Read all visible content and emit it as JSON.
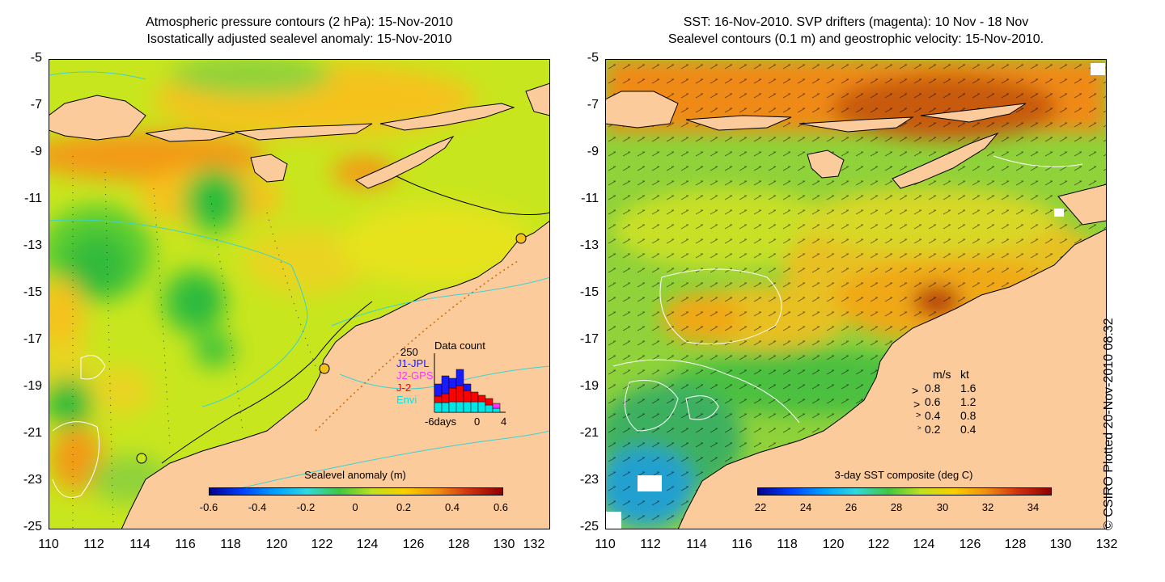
{
  "left_panel": {
    "title_line1": "Atmospheric pressure contours (2 hPa): 15-Nov-2010",
    "title_line2": "Isostatically adjusted sealevel anomaly: 15-Nov-2010",
    "colorbar": {
      "label": "Sealevel anomaly (m)",
      "ticks": [
        "-0.6",
        "-0.4",
        "-0.2",
        "0",
        "0.2",
        "0.4",
        "0.6"
      ]
    },
    "inset": {
      "title": "Data count",
      "y_max_label": "250",
      "legend": [
        {
          "label": "J1-JPL",
          "color": "#1a1aff"
        },
        {
          "label": "J2-GPS",
          "color": "#ff33ff"
        },
        {
          "label": "J-2",
          "color": "#ff0000"
        },
        {
          "label": "Envi",
          "color": "#00e5e5"
        }
      ],
      "x_labels": [
        "-6days",
        "0",
        "4"
      ]
    }
  },
  "right_panel": {
    "title_line1": "SST: 16-Nov-2010. SVP drifters (magenta): 10 Nov - 18 Nov",
    "title_line2": "Sealevel contours (0.1 m) and geostrophic velocity: 15-Nov-2010.",
    "colorbar": {
      "label": "3-day SST composite (deg C)",
      "ticks": [
        "22",
        "24",
        "26",
        "28",
        "30",
        "32",
        "34"
      ]
    },
    "velocity_legend": {
      "header_ms": "m/s",
      "header_kt": "kt",
      "rows": [
        {
          "ms": "0.8",
          "kt": "1.6"
        },
        {
          "ms": "0.6",
          "kt": "1.2"
        },
        {
          "ms": "0.4",
          "kt": "0.8"
        },
        {
          "ms": "0.2",
          "kt": "0.4"
        }
      ]
    }
  },
  "axes": {
    "y_ticks": [
      "-5",
      "-7",
      "-9",
      "-11",
      "-13",
      "-15",
      "-17",
      "-19",
      "-21",
      "-23",
      "-25"
    ],
    "x_ticks": [
      "110",
      "112",
      "114",
      "116",
      "118",
      "120",
      "122",
      "124",
      "126",
      "128",
      "130",
      "132"
    ]
  },
  "credit": "© CSIRO Plotted 20-Nov-2010 08:32",
  "colors": {
    "land": "#fccb9c",
    "ocean_base_left": "#c8e61e",
    "ocean_base_right": "#8fd23a",
    "contour_cyan": "#3cd2d2"
  }
}
